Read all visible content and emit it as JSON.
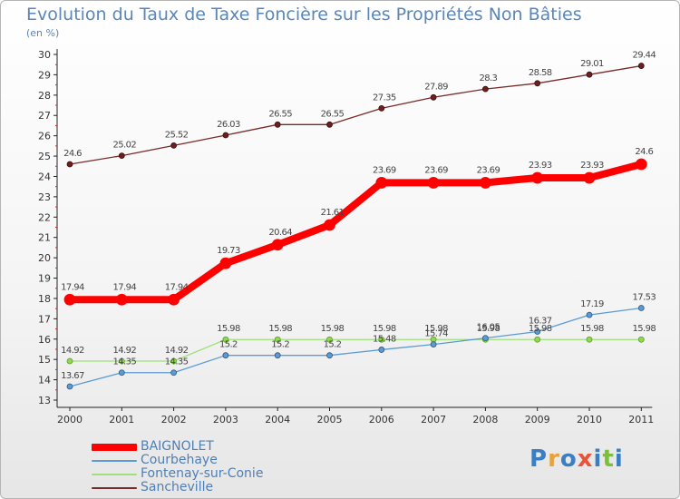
{
  "title": "Evolution du Taux de Taxe Foncière sur les Propriétés Non Bâties",
  "unit_label": "(en %)",
  "logo": {
    "text": "Proxiti",
    "letter_colors": [
      "#3a7fc4",
      "#e8a23a",
      "#3a7fc4",
      "#e8533a",
      "#3a7fc4",
      "#7bbf3a",
      "#3a7fc4"
    ]
  },
  "chart_data": {
    "type": "line",
    "title": "Evolution du Taux de Taxe Foncière sur les Propriétés Non Bâties",
    "ylabel": "(en %)",
    "xlabel": "",
    "x": [
      "2000",
      "2001",
      "2002",
      "2003",
      "2004",
      "2005",
      "2006",
      "2007",
      "2008",
      "2009",
      "2010",
      "2011"
    ],
    "ylim": [
      13,
      30
    ],
    "yticks": [
      13,
      14,
      15,
      16,
      17,
      18,
      19,
      20,
      21,
      22,
      23,
      24,
      25,
      26,
      27,
      28,
      29,
      30
    ],
    "grid": false,
    "legend_position": "bottom-left",
    "series": [
      {
        "name": "BAIGNOLET",
        "color": "#ff0000",
        "values": [
          17.94,
          17.94,
          17.94,
          19.73,
          20.64,
          21.61,
          23.69,
          23.69,
          23.69,
          23.93,
          23.93,
          24.6
        ],
        "labels": [
          "17.94",
          "17.94",
          "17.94",
          "19.73",
          "20.64",
          "21.61",
          "23.69",
          "23.69",
          "23.69",
          "23.93",
          "23.93",
          "24.6"
        ]
      },
      {
        "name": "Courbehaye",
        "color": "#5b9bd5",
        "values": [
          13.67,
          14.35,
          14.35,
          15.2,
          15.2,
          15.2,
          15.48,
          15.74,
          16.05,
          16.37,
          17.19,
          17.53
        ],
        "labels": [
          "13.67",
          "14.35",
          "14.35",
          "15.2",
          "15.2",
          "15.2",
          "15.48",
          "15.74",
          "16.05",
          "16.37",
          "17.19",
          "17.53"
        ]
      },
      {
        "name": "Fontenay-sur-Conie",
        "color": "#9fe07a",
        "values": [
          14.92,
          14.92,
          14.92,
          15.98,
          15.98,
          15.98,
          15.98,
          15.98,
          15.98,
          15.98,
          15.98,
          15.98
        ],
        "labels": [
          "14.92",
          "14.92",
          "14.92",
          "15.98",
          "15.98",
          "15.98",
          "15.98",
          "15.98",
          "15.98",
          "15.98",
          "15.98",
          "15.98"
        ]
      },
      {
        "name": "Sancheville",
        "color": "#7a2a2a",
        "values": [
          24.6,
          25.02,
          25.52,
          26.03,
          26.55,
          26.55,
          27.35,
          27.89,
          28.3,
          28.58,
          29.01,
          29.44
        ],
        "labels": [
          "24.6",
          "25.02",
          "25.52",
          "26.03",
          "26.55",
          "26.55",
          "27.35",
          "27.89",
          "28.3",
          "28.58",
          "29.01",
          "29.44"
        ]
      }
    ]
  }
}
